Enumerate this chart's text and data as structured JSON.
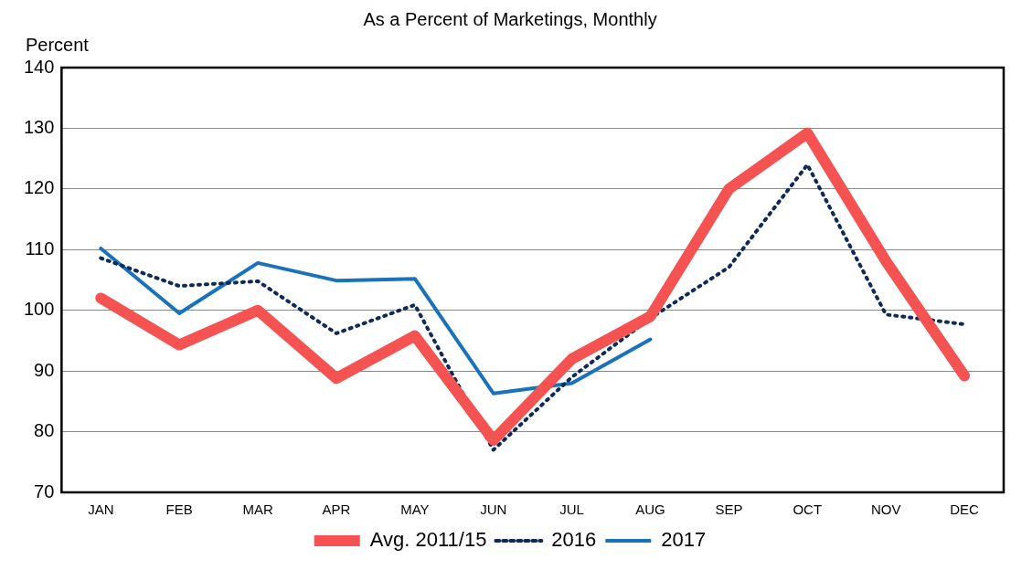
{
  "chart_data": {
    "type": "line",
    "title": "As a Percent of Marketings, Monthly",
    "ylabel": "Percent",
    "categories": [
      "JAN",
      "FEB",
      "MAR",
      "APR",
      "MAY",
      "JUN",
      "JUL",
      "AUG",
      "SEP",
      "OCT",
      "NOV",
      "DEC"
    ],
    "series": [
      {
        "name": "Avg. 2011/15",
        "color": "#f55252",
        "values": [
          102,
          94.3,
          100,
          88.8,
          95.8,
          78.6,
          92,
          99,
          120,
          129.2,
          108.1,
          89.2
        ],
        "line_style": "solid"
      },
      {
        "name": "2016",
        "color": "#0d2a5a",
        "values": [
          108.6,
          104,
          104.8,
          96.2,
          100.9,
          77,
          89,
          98.7,
          107.1,
          124,
          99.3,
          97.7
        ],
        "line_style": "dotted"
      },
      {
        "name": "2017",
        "color": "#1a72bb",
        "values": [
          110.2,
          99.5,
          107.8,
          104.9,
          105.2,
          86.3,
          88,
          95.2,
          null,
          null,
          null,
          null
        ],
        "line_style": "solid"
      }
    ],
    "ylim": [
      70,
      140
    ],
    "yticks": [
      70,
      80,
      90,
      100,
      110,
      120,
      130,
      140
    ],
    "grid": "y",
    "legend": "bottom",
    "marker": "none"
  }
}
